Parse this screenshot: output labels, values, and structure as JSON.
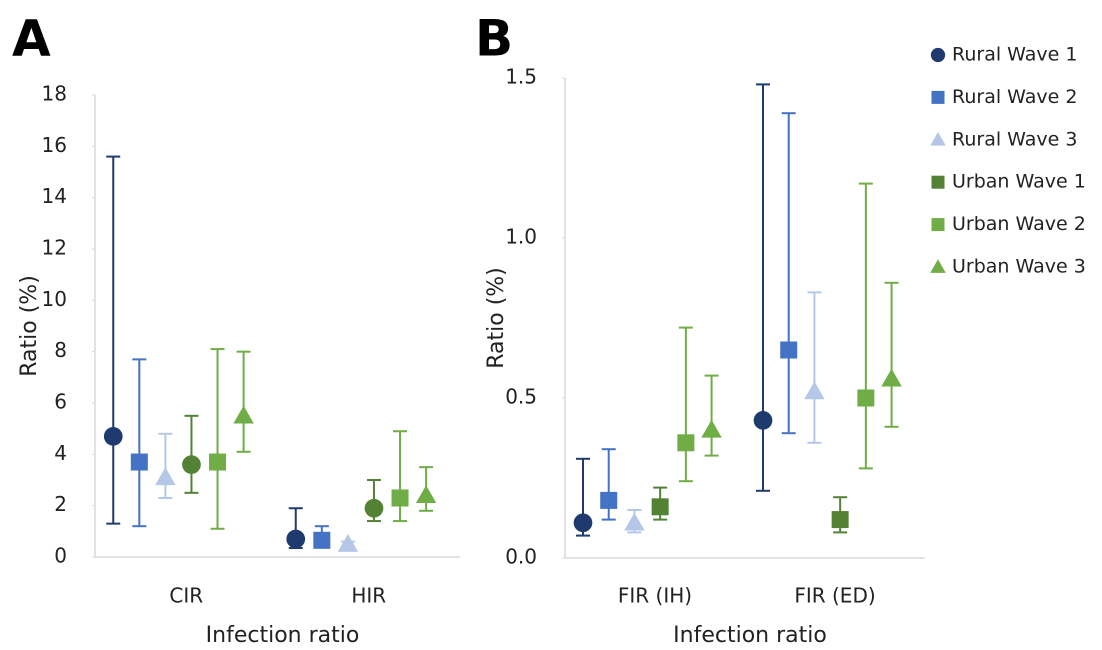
{
  "chart_data": [
    {
      "type": "errorbar",
      "panel_label": "A",
      "ylabel": "Ratio  (%)",
      "xlabel": "Infection ratio",
      "categories": [
        "CIR",
        "HIR"
      ],
      "ylim": [
        0,
        18
      ],
      "yticks": [
        0,
        2,
        4,
        6,
        8,
        10,
        12,
        14,
        16,
        18
      ],
      "series": [
        {
          "color": "#1f3a6e",
          "marker": "circle",
          "values": [
            4.7,
            0.7
          ],
          "lower": [
            1.3,
            0.35
          ],
          "upper": [
            15.6,
            1.9
          ]
        },
        {
          "color": "#4472c4",
          "marker": "square",
          "values": [
            3.7,
            0.65
          ],
          "lower": [
            1.2,
            0.4
          ],
          "upper": [
            7.7,
            1.2
          ]
        },
        {
          "color": "#b4c7e7",
          "marker": "triangle",
          "values": [
            3.1,
            0.5
          ],
          "lower": [
            2.3,
            0.4
          ],
          "upper": [
            4.8,
            0.6
          ]
        },
        {
          "color": "#548235",
          "marker": "circle",
          "values": [
            3.6,
            1.9
          ],
          "lower": [
            2.5,
            1.4
          ],
          "upper": [
            5.5,
            3.0
          ]
        },
        {
          "color": "#70ad47",
          "marker": "square",
          "values": [
            3.7,
            2.3
          ],
          "lower": [
            1.1,
            1.4
          ],
          "upper": [
            8.1,
            4.9
          ]
        },
        {
          "color": "#70ad47",
          "marker": "triangle",
          "values": [
            5.5,
            2.4
          ],
          "lower": [
            4.1,
            1.8
          ],
          "upper": [
            8.0,
            3.5
          ]
        }
      ]
    },
    {
      "type": "errorbar",
      "panel_label": "B",
      "ylabel": "Ratio (%)",
      "xlabel": "Infection ratio",
      "categories": [
        "FIR (IH)",
        "FIR (ED)"
      ],
      "ylim": [
        0,
        1.5
      ],
      "yticks": [
        {
          "value": 0,
          "label": "0.0"
        },
        0.5,
        {
          "value": 1,
          "label": "1.0"
        },
        1.5
      ],
      "series": [
        {
          "name": "Rural Wave 1",
          "color": "#1f3a6e",
          "marker": "circle",
          "values": [
            0.11,
            0.43
          ],
          "lower": [
            0.07,
            0.21
          ],
          "upper": [
            0.31,
            1.48
          ]
        },
        {
          "name": "Rural Wave 2",
          "color": "#4472c4",
          "marker": "square",
          "values": [
            0.18,
            0.65
          ],
          "lower": [
            0.12,
            0.39
          ],
          "upper": [
            0.34,
            1.39
          ]
        },
        {
          "name": "Rural Wave 3",
          "color": "#b4c7e7",
          "marker": "triangle",
          "values": [
            0.11,
            0.52
          ],
          "lower": [
            0.08,
            0.36
          ],
          "upper": [
            0.15,
            0.83
          ]
        },
        {
          "name": "Urban Wave 1",
          "color": "#548235",
          "marker": "square",
          "values": [
            0.16,
            0.12
          ],
          "lower": [
            0.12,
            0.08
          ],
          "upper": [
            0.22,
            0.19
          ]
        },
        {
          "name": "Urban Wave 2",
          "color": "#70ad47",
          "marker": "square",
          "values": [
            0.36,
            0.5
          ],
          "lower": [
            0.24,
            0.28
          ],
          "upper": [
            0.72,
            1.17
          ]
        },
        {
          "name": "Urban Wave 3",
          "color": "#70ad47",
          "marker": "triangle",
          "values": [
            0.4,
            0.56
          ],
          "lower": [
            0.32,
            0.41
          ],
          "upper": [
            0.57,
            0.86
          ]
        }
      ]
    }
  ]
}
